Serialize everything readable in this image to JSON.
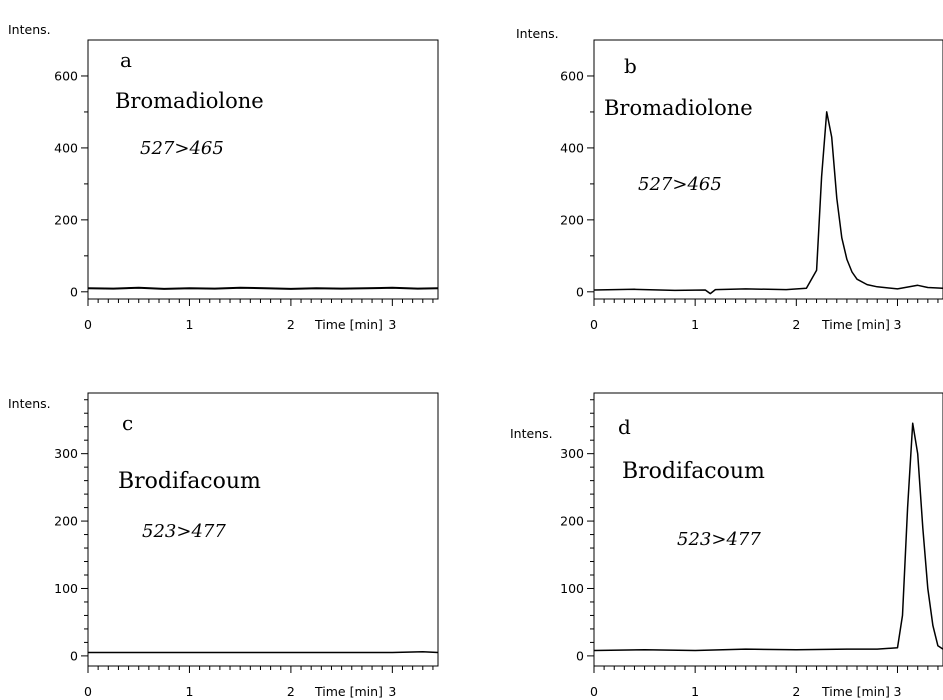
{
  "chart_data": [
    {
      "panel": "a",
      "type": "line",
      "axis_title_y": "Intens.",
      "axis_title_x": "Time [min]",
      "compound": "Bromadiolone",
      "transition": "527>465",
      "xlim": [
        0,
        3.45
      ],
      "ylim": [
        -20,
        700
      ],
      "x_ticks": [
        0,
        1,
        2,
        3
      ],
      "x_tick_labels": [
        "0",
        "1",
        "2",
        "3"
      ],
      "y_ticks": [
        0,
        200,
        400,
        600
      ],
      "y_minor_ticks": [
        100,
        300,
        500
      ],
      "series": [
        {
          "x": [
            0,
            0.25,
            0.5,
            0.75,
            1.0,
            1.25,
            1.5,
            1.75,
            2.0,
            2.25,
            2.5,
            2.75,
            3.0,
            3.25,
            3.45
          ],
          "y": [
            10,
            9,
            11,
            8,
            10,
            9,
            11,
            10,
            8,
            10,
            9,
            10,
            11,
            9,
            10
          ]
        }
      ]
    },
    {
      "panel": "b",
      "type": "line",
      "axis_title_y": "Intens.",
      "axis_title_x": "Time [min]",
      "compound": "Bromadiolone",
      "transition": "527>465",
      "xlim": [
        0,
        3.45
      ],
      "ylim": [
        -20,
        700
      ],
      "x_ticks": [
        0,
        1,
        2,
        3
      ],
      "x_tick_labels": [
        "0",
        "1",
        "2",
        "3"
      ],
      "y_ticks": [
        0,
        200,
        400,
        600
      ],
      "y_minor_ticks": [
        100,
        300,
        500
      ],
      "series": [
        {
          "x": [
            0,
            0.4,
            0.8,
            1.1,
            1.15,
            1.2,
            1.5,
            1.9,
            2.1,
            2.2,
            2.25,
            2.3,
            2.35,
            2.4,
            2.45,
            2.5,
            2.55,
            2.6,
            2.7,
            2.8,
            3.0,
            3.2,
            3.3,
            3.45
          ],
          "y": [
            5,
            7,
            4,
            5,
            -5,
            6,
            8,
            6,
            10,
            60,
            320,
            500,
            430,
            260,
            150,
            90,
            55,
            35,
            20,
            14,
            8,
            18,
            12,
            10
          ]
        }
      ]
    },
    {
      "panel": "c",
      "type": "line",
      "axis_title_y": "Intens.",
      "axis_title_x": "Time [min]",
      "compound": "Brodifacoum",
      "transition": "523>477",
      "xlim": [
        0,
        3.45
      ],
      "ylim": [
        -15,
        390
      ],
      "x_ticks": [
        0,
        1,
        2,
        3
      ],
      "x_tick_labels": [
        "0",
        "1",
        "2",
        "3"
      ],
      "y_ticks": [
        0,
        100,
        200,
        300
      ],
      "series": [
        {
          "x": [
            0,
            0.5,
            1.0,
            1.5,
            2.0,
            2.5,
            3.0,
            3.3,
            3.45
          ],
          "y": [
            5,
            5,
            5,
            5,
            5,
            5,
            5,
            6,
            5
          ]
        }
      ]
    },
    {
      "panel": "d",
      "type": "line",
      "axis_title_y": "Intens.",
      "axis_title_x": "Time [min]",
      "compound": "Brodifacoum",
      "transition": "523>477",
      "xlim": [
        0,
        3.45
      ],
      "ylim": [
        -15,
        390
      ],
      "x_ticks": [
        0,
        1,
        2,
        3
      ],
      "x_tick_labels": [
        "0",
        "1",
        "2",
        "3"
      ],
      "y_ticks": [
        0,
        100,
        200,
        300
      ],
      "series": [
        {
          "x": [
            0,
            0.5,
            1.0,
            1.5,
            2.0,
            2.5,
            2.8,
            3.0,
            3.05,
            3.1,
            3.15,
            3.2,
            3.25,
            3.3,
            3.35,
            3.4,
            3.45
          ],
          "y": [
            8,
            9,
            8,
            10,
            9,
            10,
            10,
            12,
            60,
            220,
            345,
            300,
            190,
            100,
            45,
            15,
            10
          ]
        }
      ]
    }
  ]
}
